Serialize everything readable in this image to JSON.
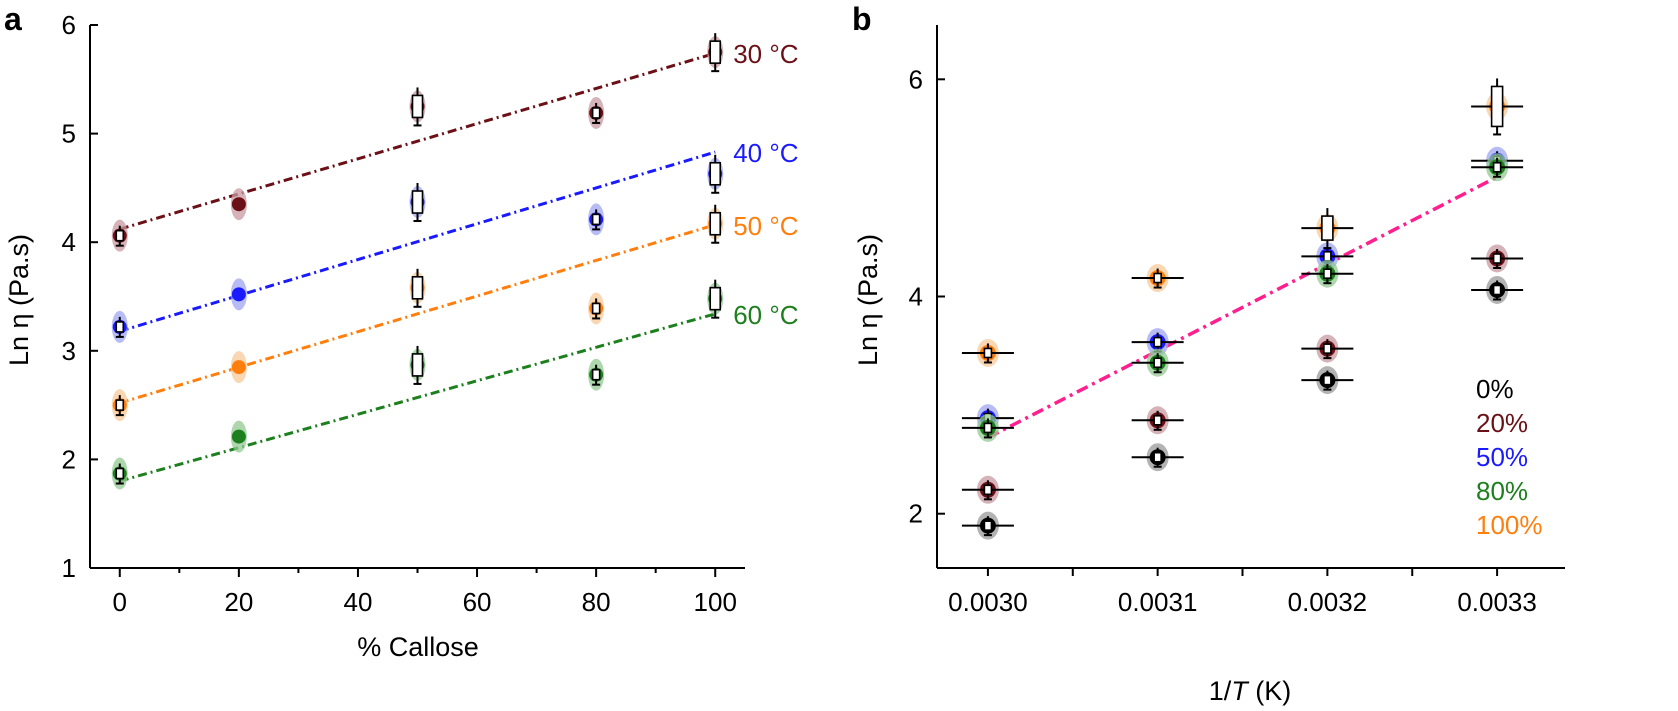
{
  "chart_data": [
    {
      "panel": "a",
      "type": "scatter",
      "xlabel": "% Callose",
      "ylabel": "Ln η (Pa.s)",
      "xlim": [
        -5,
        105
      ],
      "ylim": [
        1,
        6
      ],
      "xticks": [
        0,
        20,
        40,
        60,
        80,
        100
      ],
      "yticks": [
        1,
        2,
        3,
        4,
        5,
        6
      ],
      "x_minor_step": 10,
      "series": [
        {
          "name": "30 °C",
          "color": "#6b1016",
          "light_color": "#c79aa0",
          "x": [
            0,
            20,
            50,
            80,
            100
          ],
          "y": [
            4.06,
            4.35,
            5.25,
            5.19,
            5.75
          ],
          "fit": [
            4.12,
            5.74
          ]
        },
        {
          "name": "40 °C",
          "color": "#1a1aff",
          "light_color": "#9fa6f2",
          "x": [
            0,
            20,
            50,
            80,
            100
          ],
          "y": [
            3.22,
            3.52,
            4.37,
            4.21,
            4.63
          ],
          "fit": [
            3.18,
            4.83
          ]
        },
        {
          "name": "50 °C",
          "color": "#ff7f0e",
          "light_color": "#f7c99a",
          "x": [
            0,
            20,
            50,
            80,
            100
          ],
          "y": [
            2.5,
            2.85,
            3.58,
            3.39,
            4.17
          ],
          "fit": [
            2.52,
            4.16
          ]
        },
        {
          "name": "60 °C",
          "color": "#1d7f1d",
          "light_color": "#93c993",
          "x": [
            0,
            20,
            50,
            80,
            100
          ],
          "y": [
            1.87,
            2.21,
            2.87,
            2.78,
            3.48
          ],
          "fit": [
            1.8,
            3.34
          ]
        }
      ]
    },
    {
      "panel": "b",
      "type": "scatter",
      "xlabel": "1/T (K)",
      "ylabel": "Ln η (Pa.s)",
      "xlim": [
        0.00297,
        0.00334
      ],
      "ylim": [
        1.5,
        6.5
      ],
      "xticks": [
        "0.0030",
        "0.0031",
        "0.0032",
        "0.0033"
      ],
      "yticks": [
        2,
        4,
        6
      ],
      "x_minor_step": 5e-05,
      "fit": {
        "x": [
          0.003,
          0.0033
        ],
        "y": [
          2.7,
          5.1
        ],
        "color": "#ff1f8e"
      },
      "series": [
        {
          "name": "0%",
          "color": "#000000",
          "light_color": "#9a9a9a",
          "x": [
            0.003,
            0.0031,
            0.0032,
            0.0033
          ],
          "y": [
            1.89,
            2.52,
            3.23,
            4.06
          ]
        },
        {
          "name": "20%",
          "color": "#6b1016",
          "light_color": "#c79aa0",
          "x": [
            0.003,
            0.0031,
            0.0032,
            0.0033
          ],
          "y": [
            2.22,
            2.86,
            3.52,
            4.35
          ]
        },
        {
          "name": "50%",
          "color": "#1a1aff",
          "light_color": "#9fa6f2",
          "x": [
            0.003,
            0.0031,
            0.0032,
            0.0033
          ],
          "y": [
            2.88,
            3.58,
            4.37,
            5.25
          ]
        },
        {
          "name": "80%",
          "color": "#1d7f1d",
          "light_color": "#93c993",
          "x": [
            0.003,
            0.0031,
            0.0032,
            0.0033
          ],
          "y": [
            2.79,
            3.39,
            4.21,
            5.19
          ]
        },
        {
          "name": "100%",
          "color": "#ff7f0e",
          "light_color": "#f7c99a",
          "x": [
            0.003,
            0.0031,
            0.0032,
            0.0033
          ],
          "y": [
            3.48,
            4.17,
            4.63,
            5.75
          ]
        }
      ]
    }
  ]
}
